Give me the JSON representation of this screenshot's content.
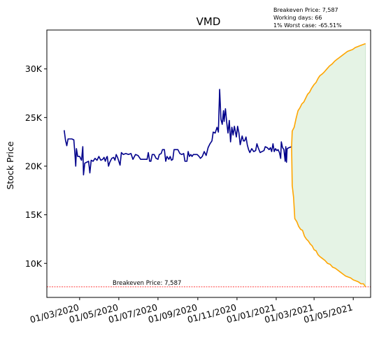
{
  "chart_data": {
    "type": "line",
    "title": "VMD",
    "xlabel": "",
    "ylabel": "Stock Price",
    "x_ticks": [
      "01/03/2020",
      "01/05/2020",
      "01/07/2020",
      "01/09/2020",
      "01/11/2020",
      "01/01/2021",
      "01/03/2021",
      "01/05/2021"
    ],
    "y_ticks": [
      "10K",
      "15K",
      "20K",
      "25K",
      "30K"
    ],
    "xlim": [
      "2020-01-10",
      "2021-05-28"
    ],
    "ylim": [
      6500,
      34000
    ],
    "grid": false,
    "info_lines": [
      "Breakeven Price: 7,587",
      "Working days: 66",
      "1% Worst case: -65.51%"
    ],
    "breakeven": {
      "value": 7587,
      "label": "Breakeven Price: 7,587",
      "color": "#ff0000"
    },
    "series": [
      {
        "color": "#00008b",
        "points": [
          [
            "2020-02-06",
            23700
          ],
          [
            "2020-02-08",
            22700
          ],
          [
            "2020-02-10",
            22100
          ],
          [
            "2020-02-12",
            22800
          ],
          [
            "2020-02-15",
            22800
          ],
          [
            "2020-02-18",
            22800
          ],
          [
            "2020-02-21",
            22700
          ],
          [
            "2020-02-23",
            21000
          ],
          [
            "2020-02-24",
            20000
          ],
          [
            "2020-02-25",
            21800
          ],
          [
            "2020-02-27",
            21000
          ],
          [
            "2020-03-01",
            21000
          ],
          [
            "2020-03-04",
            20600
          ],
          [
            "2020-03-06",
            22000
          ],
          [
            "2020-03-07",
            19100
          ],
          [
            "2020-03-09",
            20300
          ],
          [
            "2020-03-12",
            20400
          ],
          [
            "2020-03-15",
            20500
          ],
          [
            "2020-03-17",
            19300
          ],
          [
            "2020-03-19",
            20600
          ],
          [
            "2020-03-22",
            20500
          ],
          [
            "2020-03-25",
            20800
          ],
          [
            "2020-03-28",
            20600
          ],
          [
            "2020-03-31",
            21000
          ],
          [
            "2020-04-03",
            20600
          ],
          [
            "2020-04-06",
            20700
          ],
          [
            "2020-04-08",
            20900
          ],
          [
            "2020-04-10",
            20500
          ],
          [
            "2020-04-12",
            20900
          ],
          [
            "2020-04-13",
            21000
          ],
          [
            "2020-04-15",
            20000
          ],
          [
            "2020-04-17",
            20400
          ],
          [
            "2020-04-20",
            20800
          ],
          [
            "2020-04-23",
            20900
          ],
          [
            "2020-04-25",
            20600
          ],
          [
            "2020-04-27",
            21200
          ],
          [
            "2020-04-29",
            20900
          ],
          [
            "2020-05-03",
            20100
          ],
          [
            "2020-05-05",
            21400
          ],
          [
            "2020-05-08",
            21200
          ],
          [
            "2020-05-12",
            21300
          ],
          [
            "2020-05-16",
            21200
          ],
          [
            "2020-05-20",
            21300
          ],
          [
            "2020-05-23",
            20700
          ],
          [
            "2020-05-27",
            21200
          ],
          [
            "2020-05-31",
            21100
          ],
          [
            "2020-06-04",
            20700
          ],
          [
            "2020-06-08",
            20700
          ],
          [
            "2020-06-11",
            20700
          ],
          [
            "2020-06-14",
            20700
          ],
          [
            "2020-06-16",
            21400
          ],
          [
            "2020-06-18",
            20500
          ],
          [
            "2020-06-20",
            20500
          ],
          [
            "2020-06-22",
            21200
          ],
          [
            "2020-06-25",
            21200
          ],
          [
            "2020-06-28",
            20800
          ],
          [
            "2020-07-01",
            20700
          ],
          [
            "2020-07-03",
            21200
          ],
          [
            "2020-07-06",
            21300
          ],
          [
            "2020-07-08",
            21700
          ],
          [
            "2020-07-11",
            21700
          ],
          [
            "2020-07-13",
            20500
          ],
          [
            "2020-07-15",
            21000
          ],
          [
            "2020-07-18",
            20700
          ],
          [
            "2020-07-20",
            21000
          ],
          [
            "2020-07-22",
            20600
          ],
          [
            "2020-07-24",
            20700
          ],
          [
            "2020-07-26",
            21700
          ],
          [
            "2020-07-29",
            21700
          ],
          [
            "2020-08-01",
            21700
          ],
          [
            "2020-08-04",
            21300
          ],
          [
            "2020-08-07",
            21200
          ],
          [
            "2020-08-10",
            21300
          ],
          [
            "2020-08-12",
            20500
          ],
          [
            "2020-08-15",
            20500
          ],
          [
            "2020-08-17",
            21500
          ],
          [
            "2020-08-19",
            21000
          ],
          [
            "2020-08-21",
            21200
          ],
          [
            "2020-08-23",
            21000
          ],
          [
            "2020-08-25",
            21200
          ],
          [
            "2020-08-28",
            21200
          ],
          [
            "2020-08-31",
            21200
          ],
          [
            "2020-09-03",
            21000
          ],
          [
            "2020-09-05",
            20800
          ],
          [
            "2020-09-08",
            21000
          ],
          [
            "2020-09-11",
            21500
          ],
          [
            "2020-09-14",
            21100
          ],
          [
            "2020-09-17",
            21900
          ],
          [
            "2020-09-20",
            22300
          ],
          [
            "2020-09-23",
            22600
          ],
          [
            "2020-09-25",
            23500
          ],
          [
            "2020-09-28",
            23400
          ],
          [
            "2020-10-01",
            24000
          ],
          [
            "2020-10-03",
            23500
          ],
          [
            "2020-10-05",
            27900
          ],
          [
            "2020-10-07",
            24800
          ],
          [
            "2020-10-09",
            24300
          ],
          [
            "2020-10-11",
            25700
          ],
          [
            "2020-10-12",
            24600
          ],
          [
            "2020-10-14",
            25900
          ],
          [
            "2020-10-16",
            24500
          ],
          [
            "2020-10-18",
            23400
          ],
          [
            "2020-10-20",
            24700
          ],
          [
            "2020-10-22",
            22500
          ],
          [
            "2020-10-24",
            24000
          ],
          [
            "2020-10-26",
            23200
          ],
          [
            "2020-10-28",
            24100
          ],
          [
            "2020-10-31",
            23000
          ],
          [
            "2020-11-02",
            24100
          ],
          [
            "2020-11-04",
            23400
          ],
          [
            "2020-11-06",
            22200
          ],
          [
            "2020-11-09",
            23100
          ],
          [
            "2020-11-11",
            22600
          ],
          [
            "2020-11-13",
            22600
          ],
          [
            "2020-11-15",
            23000
          ],
          [
            "2020-11-17",
            22200
          ],
          [
            "2020-11-19",
            21700
          ],
          [
            "2020-11-21",
            21400
          ],
          [
            "2020-11-24",
            21800
          ],
          [
            "2020-11-27",
            21500
          ],
          [
            "2020-11-30",
            21600
          ],
          [
            "2020-12-02",
            22300
          ],
          [
            "2020-12-04",
            21900
          ],
          [
            "2020-12-07",
            21400
          ],
          [
            "2020-12-10",
            21500
          ],
          [
            "2020-12-13",
            21600
          ],
          [
            "2020-12-15",
            22000
          ],
          [
            "2020-12-18",
            21900
          ],
          [
            "2020-12-21",
            21700
          ],
          [
            "2020-12-23",
            21900
          ],
          [
            "2020-12-25",
            21500
          ],
          [
            "2020-12-27",
            22300
          ],
          [
            "2020-12-29",
            21500
          ],
          [
            "2020-12-31",
            21800
          ],
          [
            "2021-01-02",
            21600
          ],
          [
            "2021-01-04",
            21700
          ],
          [
            "2021-01-06",
            21400
          ],
          [
            "2021-01-08",
            20800
          ],
          [
            "2021-01-09",
            22500
          ],
          [
            "2021-01-11",
            21900
          ],
          [
            "2021-01-13",
            21700
          ],
          [
            "2021-01-15",
            20500
          ],
          [
            "2021-01-16",
            22000
          ],
          [
            "2021-01-17",
            20400
          ],
          [
            "2021-01-18",
            21800
          ],
          [
            "2021-01-21",
            21900
          ],
          [
            "2021-01-25",
            22000
          ]
        ]
      }
    ],
    "forecast": {
      "color": "#ffa500",
      "fill": "#e5f3e5",
      "start": [
        "2021-01-25",
        22000
      ],
      "end_date": "2021-05-20",
      "upper": [
        [
          "2021-01-26",
          23600
        ],
        [
          "2021-01-29",
          24000
        ],
        [
          "2021-02-01",
          24900
        ],
        [
          "2021-02-04",
          25700
        ],
        [
          "2021-02-07",
          26000
        ],
        [
          "2021-02-10",
          26400
        ],
        [
          "2021-02-13",
          26600
        ],
        [
          "2021-02-16",
          27000
        ],
        [
          "2021-02-19",
          27400
        ],
        [
          "2021-02-22",
          27600
        ],
        [
          "2021-02-25",
          28000
        ],
        [
          "2021-03-01",
          28400
        ],
        [
          "2021-03-04",
          28600
        ],
        [
          "2021-03-07",
          29000
        ],
        [
          "2021-03-10",
          29300
        ],
        [
          "2021-03-14",
          29500
        ],
        [
          "2021-03-17",
          29700
        ],
        [
          "2021-03-21",
          30000
        ],
        [
          "2021-03-25",
          30300
        ],
        [
          "2021-03-29",
          30500
        ],
        [
          "2021-04-02",
          30800
        ],
        [
          "2021-04-06",
          31000
        ],
        [
          "2021-04-10",
          31200
        ],
        [
          "2021-04-14",
          31400
        ],
        [
          "2021-04-18",
          31600
        ],
        [
          "2021-04-22",
          31800
        ],
        [
          "2021-04-26",
          31900
        ],
        [
          "2021-04-30",
          32000
        ],
        [
          "2021-05-04",
          32200
        ],
        [
          "2021-05-08",
          32300
        ],
        [
          "2021-05-12",
          32400
        ],
        [
          "2021-05-16",
          32500
        ],
        [
          "2021-05-20",
          32600
        ]
      ],
      "lower": [
        [
          "2021-01-26",
          18000
        ],
        [
          "2021-01-28",
          16800
        ],
        [
          "2021-01-30",
          14600
        ],
        [
          "2021-02-02",
          14300
        ],
        [
          "2021-02-05",
          13800
        ],
        [
          "2021-02-08",
          13500
        ],
        [
          "2021-02-11",
          13400
        ],
        [
          "2021-02-14",
          12800
        ],
        [
          "2021-02-17",
          12500
        ],
        [
          "2021-02-20",
          12300
        ],
        [
          "2021-02-23",
          12000
        ],
        [
          "2021-02-26",
          11800
        ],
        [
          "2021-03-01",
          11400
        ],
        [
          "2021-03-04",
          11300
        ],
        [
          "2021-03-07",
          10900
        ],
        [
          "2021-03-10",
          10700
        ],
        [
          "2021-03-14",
          10500
        ],
        [
          "2021-03-18",
          10300
        ],
        [
          "2021-03-22",
          10000
        ],
        [
          "2021-03-26",
          9900
        ],
        [
          "2021-03-30",
          9600
        ],
        [
          "2021-04-03",
          9500
        ],
        [
          "2021-04-07",
          9300
        ],
        [
          "2021-04-11",
          9100
        ],
        [
          "2021-04-15",
          8900
        ],
        [
          "2021-04-19",
          8700
        ],
        [
          "2021-04-23",
          8600
        ],
        [
          "2021-04-27",
          8500
        ],
        [
          "2021-05-01",
          8300
        ],
        [
          "2021-05-05",
          8200
        ],
        [
          "2021-05-09",
          8100
        ],
        [
          "2021-05-13",
          7900
        ],
        [
          "2021-05-17",
          7900
        ],
        [
          "2021-05-20",
          7587
        ]
      ]
    }
  }
}
